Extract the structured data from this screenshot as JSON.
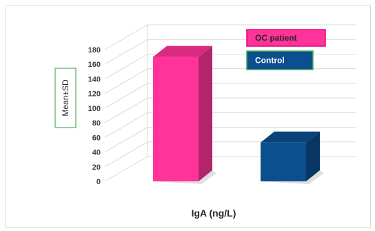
{
  "chart_data": {
    "type": "bar",
    "categories": [
      "OC patient",
      "Control"
    ],
    "values": [
      170,
      53
    ],
    "colors": [
      "#ff3399",
      "#0b4f8f"
    ],
    "title": "",
    "xlabel": "IgA (ng/L)",
    "ylabel": "Mean±SD",
    "ylim": [
      0,
      180
    ],
    "yticks": [
      "0",
      "20",
      "40",
      "60",
      "80",
      "100",
      "120",
      "140",
      "160",
      "180"
    ],
    "grid": true,
    "legend": [
      {
        "label": "OC patient",
        "color": "#ff3399",
        "text_color": "#262626",
        "border": "#e6007e"
      },
      {
        "label": "Control",
        "color": "#0b4f8f",
        "text_color": "#ffffff",
        "border": "#4caf50"
      }
    ],
    "legend_position": "top-right",
    "style": "3d"
  }
}
